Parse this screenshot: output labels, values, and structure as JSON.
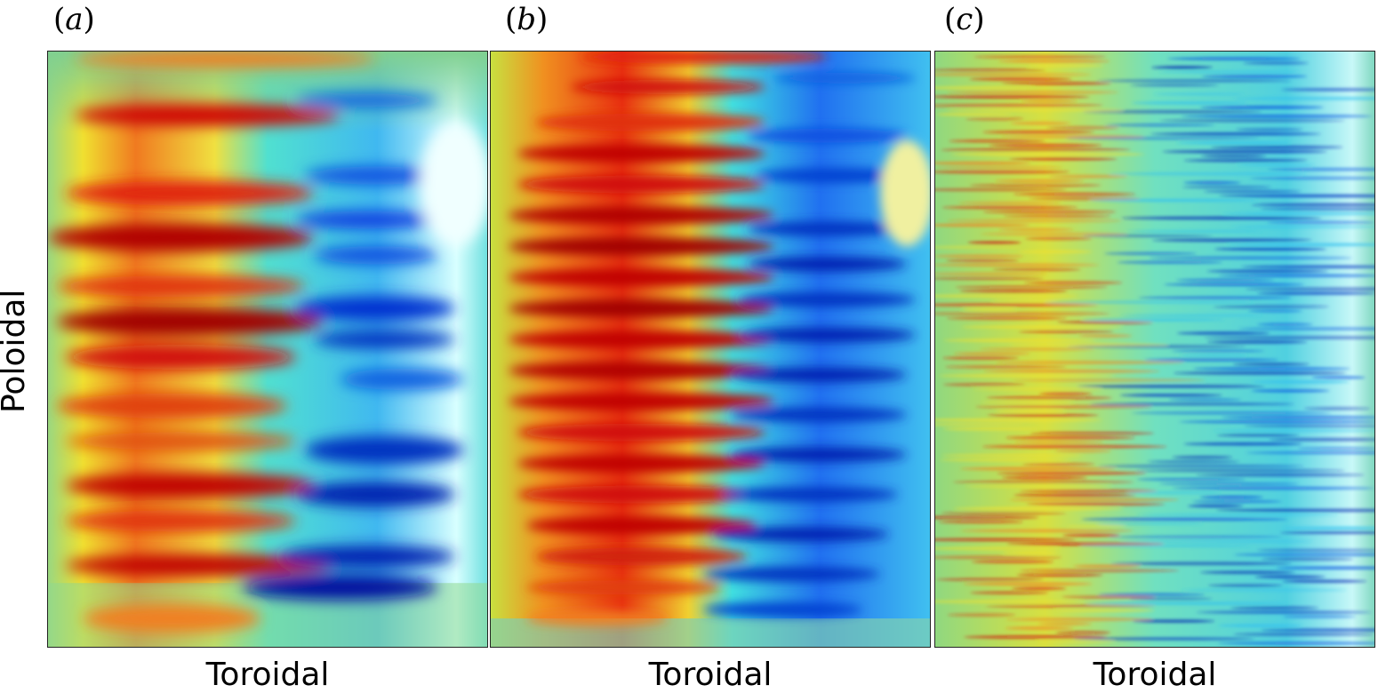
{
  "panels": [
    {
      "open": "(",
      "letter": "a",
      "close": ")",
      "xlabel": "Toroidal"
    },
    {
      "open": "(",
      "letter": "b",
      "close": ")",
      "xlabel": "Toroidal"
    },
    {
      "open": "(",
      "letter": "c",
      "close": ")",
      "xlabel": "Toroidal"
    }
  ],
  "ylabel": "Poloidal",
  "colormap": {
    "dark_red": "#a00000",
    "red": "#e01010",
    "orange": "#f08020",
    "yellow": "#f0e020",
    "green_bg": "#80d090",
    "cyan": "#30e0f0",
    "light_cyan": "#d0ffff",
    "blue": "#1050e0",
    "dark_blue": "#0000b0"
  }
}
